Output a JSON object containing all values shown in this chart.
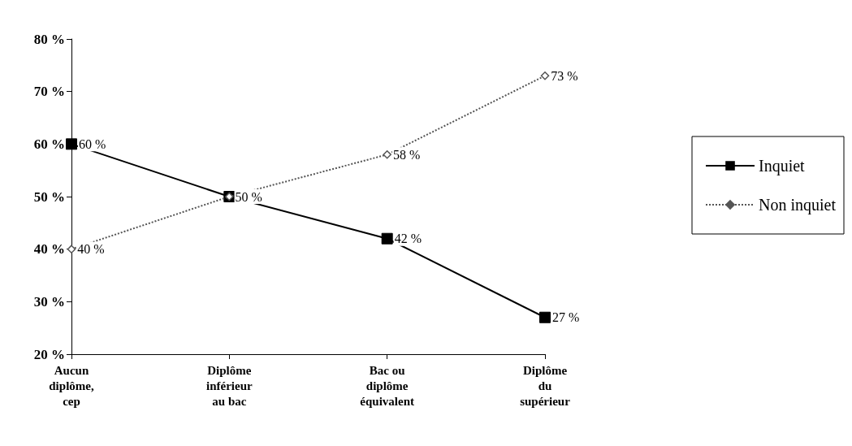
{
  "chart_data": {
    "type": "line",
    "categories": [
      "Aucun\ndiplôme,\ncep",
      "Diplôme\ninférieur\nau bac",
      "Bac ou\ndiplôme\néquivalent",
      "Diplôme\ndu\nsupérieur"
    ],
    "series": [
      {
        "name": "Inquiet",
        "color": "#000000",
        "marker": "square",
        "line_style": "solid",
        "values": [
          60,
          50,
          42,
          27
        ],
        "value_labels": [
          "60 %",
          null,
          "42 %",
          "27 %"
        ]
      },
      {
        "name": "Non inquiet",
        "color": "#555555",
        "marker": "diamond",
        "line_style": "dotted",
        "values": [
          40,
          50,
          58,
          73
        ],
        "value_labels": [
          "40 %",
          "50 %",
          "58 %",
          "73 %"
        ]
      }
    ],
    "ylim": [
      20,
      80
    ],
    "yticks": [
      {
        "value": 20,
        "label": "20 %"
      },
      {
        "value": 30,
        "label": "30 %"
      },
      {
        "value": 40,
        "label": "40 %"
      },
      {
        "value": 50,
        "label": "50 %"
      },
      {
        "value": 60,
        "label": "60 %"
      },
      {
        "value": 70,
        "label": "70 %"
      },
      {
        "value": 80,
        "label": "80 %"
      }
    ],
    "grid": false,
    "legend": "right"
  }
}
